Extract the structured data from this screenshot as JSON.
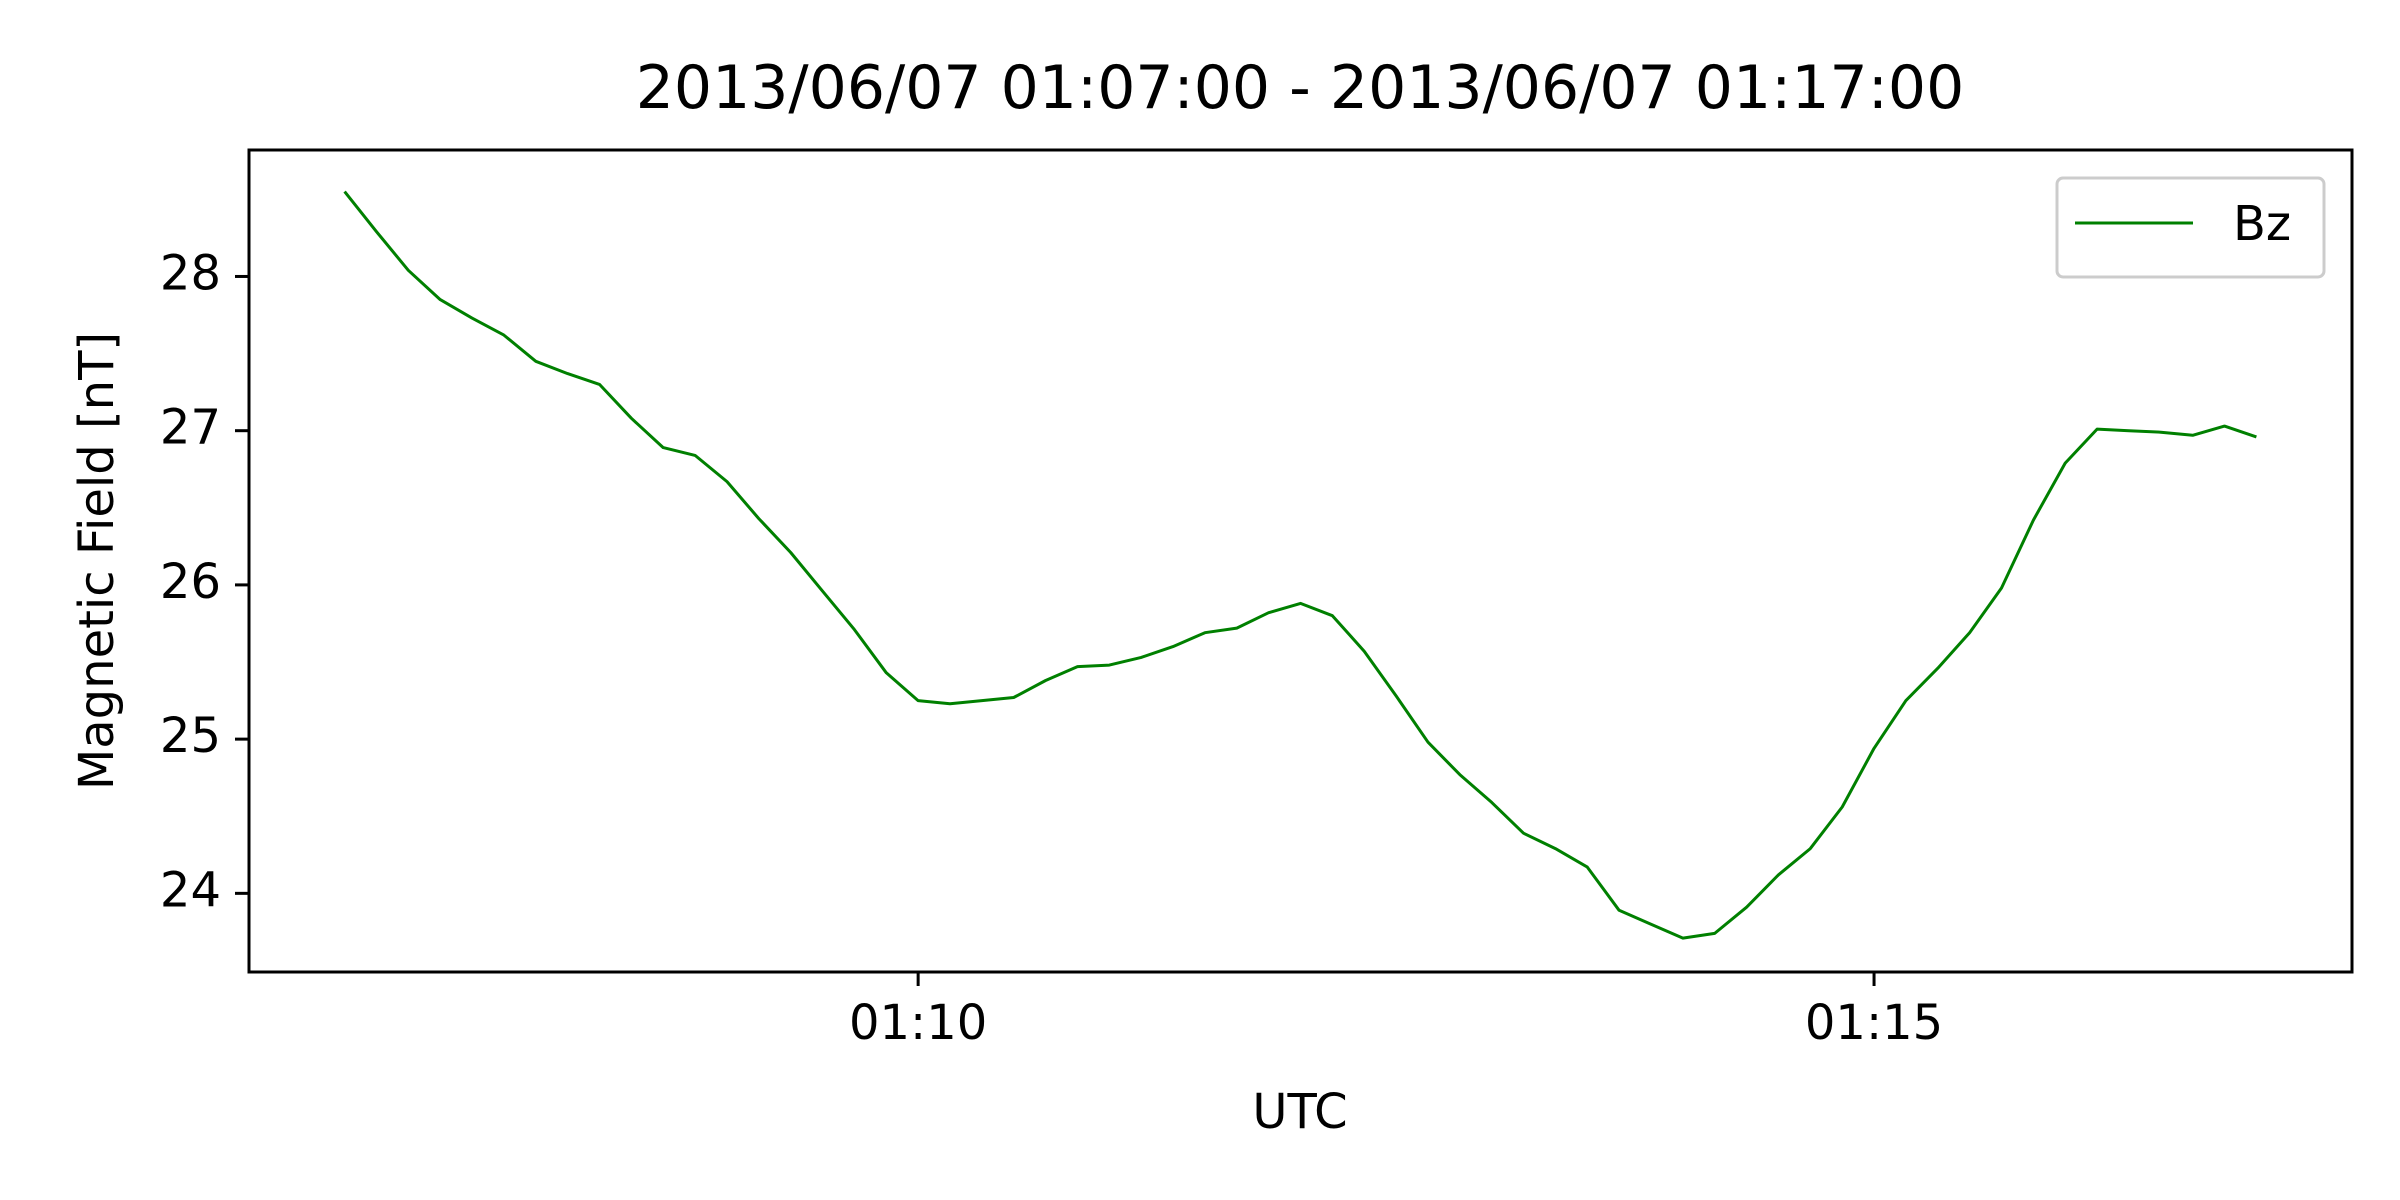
{
  "chart_data": {
    "type": "line",
    "title": "2013/06/07 01:07:00 - 2013/06/07 01:17:00",
    "xlabel": "UTC",
    "ylabel": "Magnetic Field [nT]",
    "xlim": [
      "01:06:30",
      "01:17:30"
    ],
    "ylim": [
      23.49,
      28.82
    ],
    "x_ticks": [
      {
        "value": "01:10:00",
        "label": "01:10"
      },
      {
        "value": "01:15:00",
        "label": "01:15"
      }
    ],
    "y_ticks": [
      24,
      25,
      26,
      27,
      28
    ],
    "grid": false,
    "legend": {
      "position": "top-right",
      "entries": [
        "Bz"
      ]
    },
    "series": [
      {
        "name": "Bz",
        "color": "#008000",
        "x": [
          "01:07:00",
          "01:07:10",
          "01:07:20",
          "01:07:30",
          "01:07:40",
          "01:07:50",
          "01:08:00",
          "01:08:10",
          "01:08:20",
          "01:08:30",
          "01:08:40",
          "01:08:50",
          "01:09:00",
          "01:09:10",
          "01:09:20",
          "01:09:30",
          "01:09:40",
          "01:09:50",
          "01:10:00",
          "01:10:10",
          "01:10:20",
          "01:10:30",
          "01:10:40",
          "01:10:50",
          "01:11:00",
          "01:11:10",
          "01:11:20",
          "01:11:30",
          "01:11:40",
          "01:11:50",
          "01:12:00",
          "01:12:10",
          "01:12:20",
          "01:12:30",
          "01:12:40",
          "01:12:50",
          "01:13:00",
          "01:13:10",
          "01:13:20",
          "01:13:30",
          "01:13:40",
          "01:13:50",
          "01:14:00",
          "01:14:10",
          "01:14:20",
          "01:14:30",
          "01:14:40",
          "01:14:50",
          "01:15:00",
          "01:15:10",
          "01:15:20",
          "01:15:30",
          "01:15:40",
          "01:15:50",
          "01:16:00",
          "01:16:10",
          "01:16:20",
          "01:16:30",
          "01:16:40",
          "01:16:50",
          "01:17:00"
        ],
        "values": [
          28.55,
          28.29,
          28.04,
          27.85,
          27.73,
          27.62,
          27.45,
          27.37,
          27.3,
          27.08,
          26.89,
          26.84,
          26.67,
          26.43,
          26.21,
          25.96,
          25.71,
          25.43,
          25.25,
          25.23,
          25.25,
          25.27,
          25.38,
          25.47,
          25.48,
          25.53,
          25.6,
          25.69,
          25.72,
          25.82,
          25.88,
          25.8,
          25.57,
          25.28,
          24.98,
          24.77,
          24.59,
          24.39,
          24.29,
          24.17,
          23.89,
          23.8,
          23.71,
          23.74,
          23.91,
          24.12,
          24.29,
          24.56,
          24.94,
          25.25,
          25.46,
          25.69,
          25.98,
          26.42,
          26.79,
          27.01,
          27.0,
          26.99,
          26.97,
          27.03,
          26.96
        ]
      }
    ]
  }
}
